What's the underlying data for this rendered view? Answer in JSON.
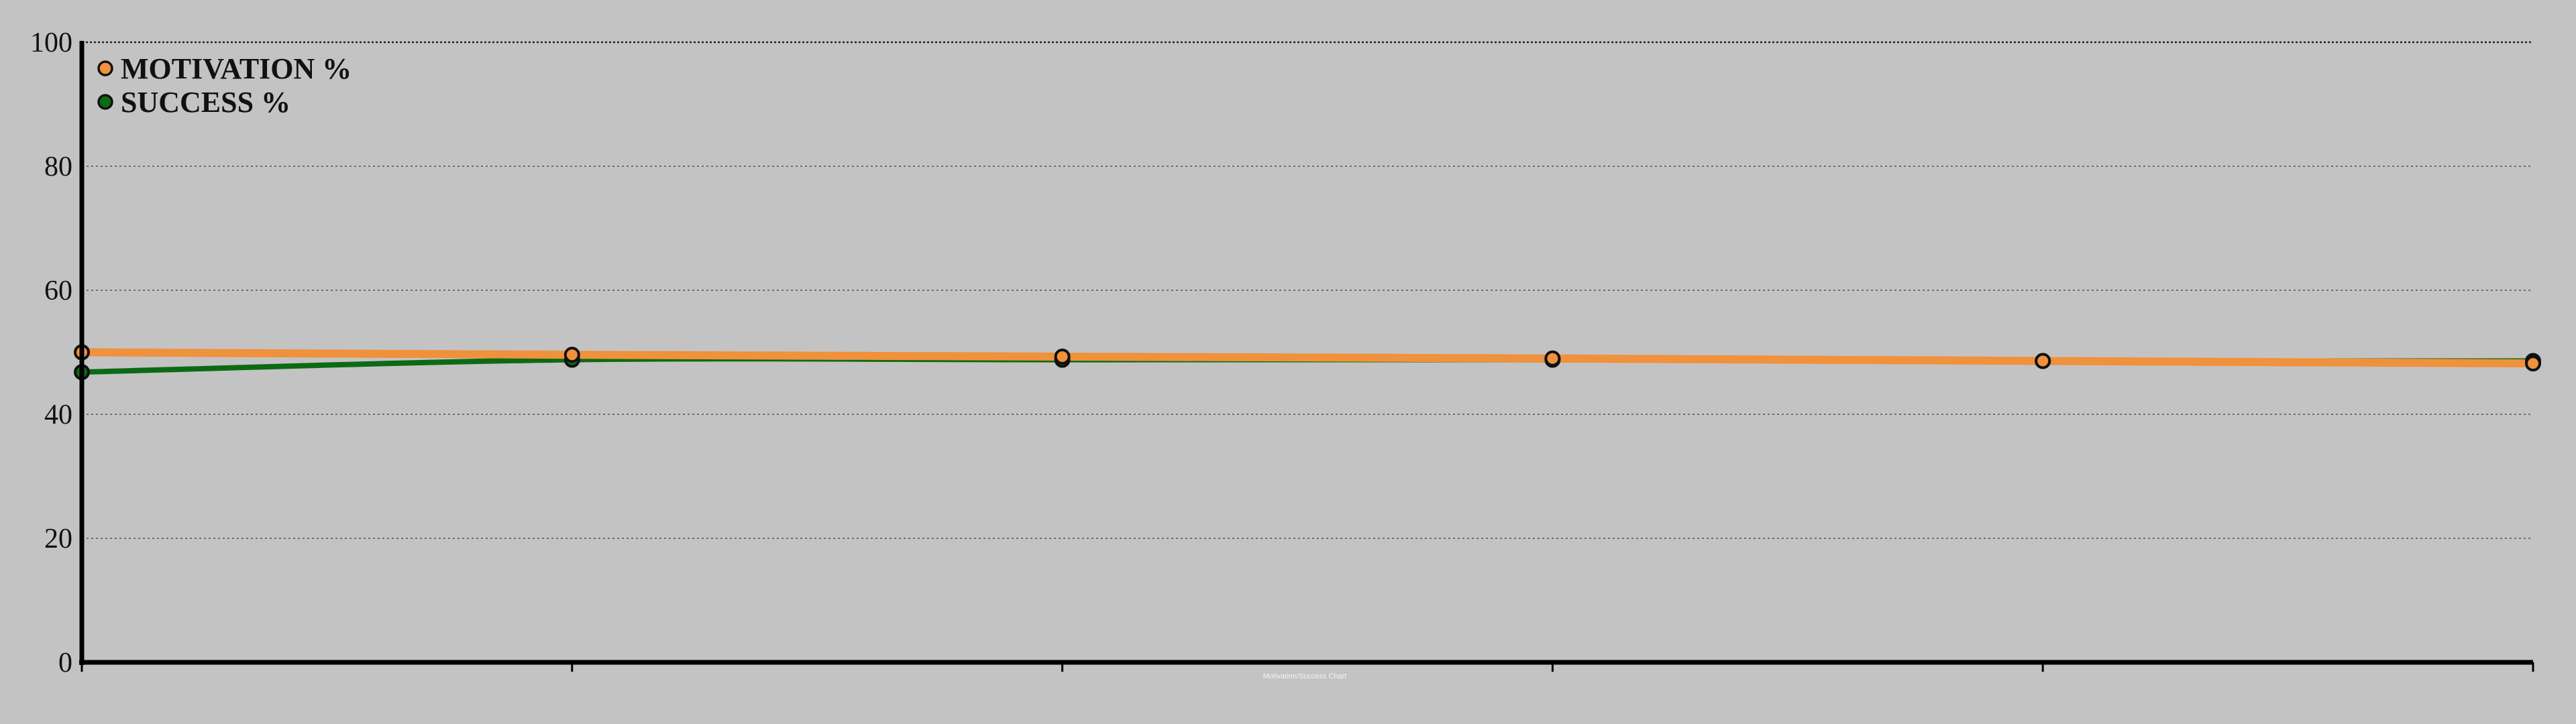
{
  "chart_data": {
    "type": "line",
    "title": "",
    "xlabel": "",
    "ylabel": "",
    "ylim": [
      0,
      100
    ],
    "yticks": [
      0,
      20,
      40,
      60,
      80,
      100
    ],
    "x": [
      0,
      1,
      2,
      3,
      4,
      5
    ],
    "grid": true,
    "legend_position": "top-left",
    "series": [
      {
        "name": "MOTIVATION %",
        "color": "#f0913c",
        "values": [
          50,
          49.6,
          49.3,
          49,
          48.6,
          48.2
        ]
      },
      {
        "name": "SUCCESS %",
        "color": "#0c6a14",
        "values": [
          46.8,
          48.8,
          48.8,
          48.8,
          48.6,
          48.6
        ]
      }
    ],
    "footer_note": "Motivation/Success Chart"
  }
}
